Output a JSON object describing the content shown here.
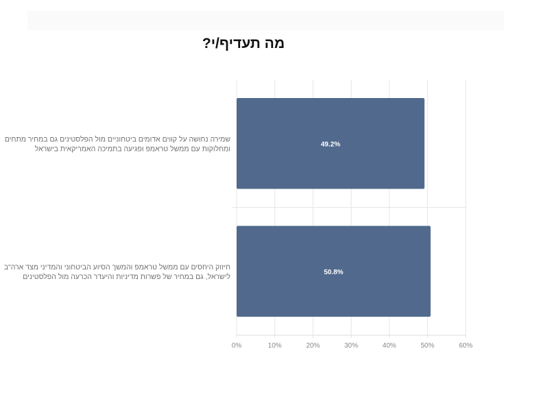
{
  "chart_data": {
    "type": "bar",
    "orientation": "horizontal",
    "title": "מה תעדיף/י?",
    "categories": [
      [
        "שמירה נחושה על קווים אדומים ביטחוניים מול הפלסטינים גם במחיר מתחים",
        "ומחלוקות עם ממשל טראמפ ופגיעה בתמיכה האמריקאית בישראל"
      ],
      [
        "חיזוק היחסים עם ממשל טראמפ והמשך הסיוע הביטחוני והמדיני מצד ארה\"ב",
        "לישראל, גם במחיר של פשרות מדיניות והיעדר הכרעה מול הפלסטינים"
      ]
    ],
    "values": [
      49.2,
      50.8
    ],
    "data_labels": [
      "49.2%",
      "50.8%"
    ],
    "xlim": [
      0,
      60
    ],
    "ticks": [
      0,
      10,
      20,
      30,
      40,
      50,
      60
    ],
    "tick_labels": [
      "0%",
      "10%",
      "20%",
      "30%",
      "40%",
      "50%",
      "60%"
    ],
    "grid": true,
    "bar_color": "#50698c",
    "gridline_color": "#e6e6e6"
  }
}
